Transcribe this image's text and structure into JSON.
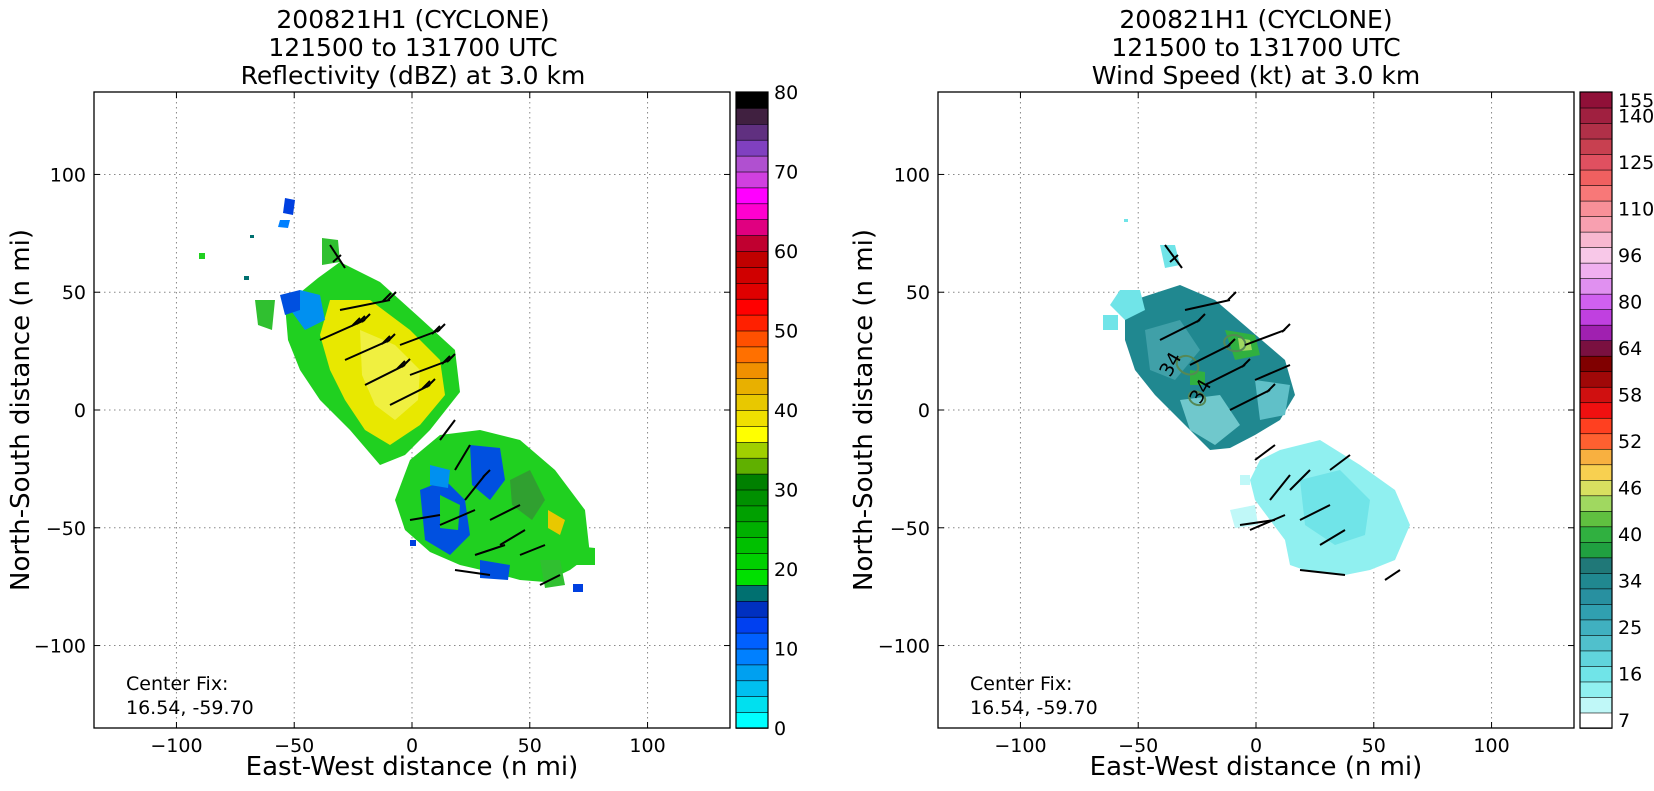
{
  "panels": [
    {
      "title_lines": [
        "200821H1 (CYCLONE)",
        "121500 to 131700 UTC",
        "Reflectivity (dBZ) at 3.0 km"
      ],
      "xlabel": "East-West distance (n mi)",
      "ylabel": "North-South distance (n mi)",
      "center_fix": [
        "Center Fix:",
        "16.54, -59.70"
      ],
      "xticks": [
        -100,
        -50,
        0,
        50,
        100
      ],
      "yticks": [
        100,
        50,
        0,
        -50,
        -100
      ],
      "colorbar": {
        "colors": [
          "#00ffff",
          "#00e0ef",
          "#00c0ef",
          "#00a0f0",
          "#0080ff",
          "#0060ff",
          "#0040f0",
          "#0030c0",
          "#007070",
          "#00e000",
          "#00d000",
          "#00c000",
          "#00b000",
          "#00a000",
          "#009000",
          "#008000",
          "#60b000",
          "#a0d000",
          "#ffff00",
          "#f0e000",
          "#e8c800",
          "#e8b000",
          "#f09000",
          "#ff7000",
          "#ff5000",
          "#ff2000",
          "#ff0000",
          "#e00000",
          "#d00000",
          "#c00000",
          "#c00030",
          "#e00080",
          "#ff00d0",
          "#ff00ff",
          "#d040e0",
          "#b050d0",
          "#8040c0",
          "#603080",
          "#402040",
          "#000000"
        ],
        "tick_labels": [
          "0",
          "10",
          "20",
          "30",
          "40",
          "50",
          "60",
          "70",
          "80"
        ]
      }
    },
    {
      "title_lines": [
        "200821H1 (CYCLONE)",
        "121500 to 131700 UTC",
        "Wind Speed (kt) at 3.0 km"
      ],
      "xlabel": "East-West distance (n mi)",
      "ylabel": "North-South distance (n mi)",
      "center_fix": [
        "Center Fix:",
        "16.54, -59.70"
      ],
      "xticks": [
        -100,
        -50,
        0,
        50,
        100
      ],
      "yticks": [
        100,
        50,
        0,
        -50,
        -100
      ],
      "contour_labels": [
        "34",
        "34"
      ],
      "colorbar": {
        "colors": [
          "#ffffff",
          "#c0f8f8",
          "#90f0f0",
          "#70e4e8",
          "#60d4dc",
          "#50c0cc",
          "#40b0c0",
          "#30a0b0",
          "#2890a0",
          "#208890",
          "#207878",
          "#20a040",
          "#30b040",
          "#60c040",
          "#a0d860",
          "#d8e060",
          "#f8d050",
          "#f8b040",
          "#ff6030",
          "#ff4020",
          "#f01010",
          "#d01010",
          "#a00808",
          "#800000",
          "#7a1040",
          "#a020b0",
          "#c040e0",
          "#d060f0",
          "#e090f0",
          "#f0b0f0",
          "#f8c8e8",
          "#f8b8d0",
          "#f8a0b0",
          "#f89098",
          "#f87878",
          "#f06060",
          "#e05060",
          "#c84050",
          "#b03048",
          "#a02040",
          "#901038"
        ],
        "tick_labels": [
          "7",
          "16",
          "25",
          "34",
          "40",
          "46",
          "52",
          "58",
          "64",
          "80",
          "96",
          "110",
          "125",
          "140",
          "155"
        ]
      }
    }
  ],
  "chart_data": [
    {
      "type": "heatmap",
      "title": "200821H1 (CYCLONE) 121500 to 131700 UTC Reflectivity (dBZ) at 3.0 km",
      "xlabel": "East-West distance (n mi)",
      "ylabel": "North-South distance (n mi)",
      "xlim": [
        -135,
        135
      ],
      "ylim": [
        -135,
        135
      ],
      "grid": true,
      "colorbar_range": [
        0,
        80
      ],
      "colorbar_label": "dBZ",
      "annotations": [
        "Center Fix:",
        "16.54, -59.70"
      ],
      "wind_barbs": true
    },
    {
      "type": "heatmap",
      "title": "200821H1 (CYCLONE) 121500 to 131700 UTC Wind Speed (kt) at 3.0 km",
      "xlabel": "East-West distance (n mi)",
      "ylabel": "North-South distance (n mi)",
      "xlim": [
        -135,
        135
      ],
      "ylim": [
        -135,
        135
      ],
      "grid": true,
      "colorbar_ticks": [
        7,
        16,
        25,
        34,
        40,
        46,
        52,
        58,
        64,
        80,
        96,
        110,
        125,
        140,
        155
      ],
      "annotations": [
        "Center Fix:",
        "16.54, -59.70",
        "34",
        "34"
      ],
      "wind_barbs": true
    }
  ]
}
